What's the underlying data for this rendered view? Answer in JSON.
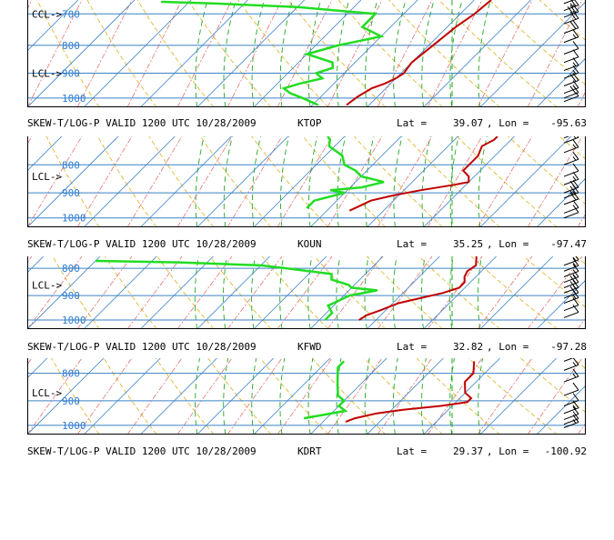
{
  "colors": {
    "isobar": "#3a82c6",
    "isotherm": "#3a82c6",
    "dry_adiabat": "#d9b020",
    "moist_adiabat": "#22a722",
    "mixing_ratio": "#e06060",
    "temperature": "#c00000",
    "dewpoint": "#22dd22",
    "wind_barb": "#000000",
    "frame": "#000000"
  },
  "panels": [
    {
      "station": "KTOP",
      "caption": {
        "title": "SKEW-T/LOG-P VALID 1200 UTC 10/28/2009",
        "station": "KTOP",
        "lat_label": "Lat =",
        "lat": "39.07",
        "lon_label": ", Lon =",
        "lon": "-95.63"
      },
      "markers": [
        {
          "label": "CCL->",
          "pressure": 700
        },
        {
          "label": "LCL->",
          "pressure": 900
        }
      ],
      "pressure_labels": [
        {
          "text": "700",
          "p": 700
        },
        {
          "text": "800",
          "p": 800
        },
        {
          "text": "900",
          "p": 900
        },
        {
          "text": "1000",
          "p": 1000
        }
      ],
      "p_top": 660,
      "p_bottom": 1040,
      "temperature": [
        [
          1030,
          16
        ],
        [
          995,
          16.5
        ],
        [
          960,
          17.5
        ],
        [
          940,
          19
        ],
        [
          920,
          20
        ],
        [
          900,
          20.5
        ],
        [
          860,
          20
        ],
        [
          820,
          20.5
        ],
        [
          780,
          21
        ],
        [
          740,
          21.5
        ],
        [
          700,
          22.5
        ],
        [
          660,
          23
        ]
      ],
      "dewpoint": [
        [
          1030,
          11
        ],
        [
          1000,
          7
        ],
        [
          980,
          4
        ],
        [
          960,
          2
        ],
        [
          940,
          4
        ],
        [
          920,
          7
        ],
        [
          900,
          5
        ],
        [
          880,
          7
        ],
        [
          860,
          6
        ],
        [
          830,
          0
        ],
        [
          800,
          4
        ],
        [
          770,
          10
        ],
        [
          740,
          5
        ],
        [
          700,
          5
        ],
        [
          680,
          -10
        ],
        [
          670,
          -25
        ],
        [
          665,
          -35
        ]
      ],
      "wind_barbs": [
        {
          "p": 670,
          "speed": 30
        },
        {
          "p": 690,
          "speed": 25
        },
        {
          "p": 710,
          "speed": 30
        },
        {
          "p": 730,
          "speed": 20
        },
        {
          "p": 760,
          "speed": 20
        },
        {
          "p": 790,
          "speed": 15
        },
        {
          "p": 830,
          "speed": 10
        },
        {
          "p": 860,
          "speed": 10
        },
        {
          "p": 890,
          "speed": 15
        },
        {
          "p": 920,
          "speed": 15
        },
        {
          "p": 950,
          "speed": 20
        },
        {
          "p": 980,
          "speed": 15
        },
        {
          "p": 1000,
          "speed": 20
        },
        {
          "p": 1015,
          "speed": 5
        }
      ]
    },
    {
      "station": "KOUN",
      "caption": {
        "title": "SKEW-T/LOG-P VALID 1200 UTC 10/28/2009",
        "station": "KOUN",
        "lat_label": "Lat =",
        "lat": "35.25",
        "lon_label": ", Lon =",
        "lon": "-97.47"
      },
      "markers": [
        {
          "label": "LCL->",
          "pressure": 840
        }
      ],
      "pressure_labels": [
        {
          "text": "800",
          "p": 800
        },
        {
          "text": "900",
          "p": 900
        },
        {
          "text": "1000",
          "p": 1000
        }
      ],
      "p_top": 710,
      "p_bottom": 1040,
      "temperature": [
        [
          970,
          14
        ],
        [
          950,
          15
        ],
        [
          930,
          16
        ],
        [
          910,
          19
        ],
        [
          890,
          23
        ],
        [
          870,
          28
        ],
        [
          860,
          30
        ],
        [
          840,
          29
        ],
        [
          820,
          27
        ],
        [
          800,
          27
        ],
        [
          770,
          27
        ],
        [
          740,
          26
        ],
        [
          720,
          27
        ],
        [
          710,
          27
        ]
      ],
      "dewpoint": [
        [
          960,
          6
        ],
        [
          930,
          6
        ],
        [
          900,
          10
        ],
        [
          890,
          7
        ],
        [
          880,
          12
        ],
        [
          860,
          15
        ],
        [
          840,
          10
        ],
        [
          820,
          8
        ],
        [
          800,
          5
        ],
        [
          770,
          3
        ],
        [
          740,
          -1
        ],
        [
          720,
          -2
        ],
        [
          710,
          -3
        ]
      ],
      "wind_barbs": [
        {
          "p": 715,
          "speed": 20
        },
        {
          "p": 730,
          "speed": 20
        },
        {
          "p": 760,
          "speed": 15
        },
        {
          "p": 800,
          "speed": 15
        },
        {
          "p": 840,
          "speed": 10
        },
        {
          "p": 870,
          "speed": 15
        },
        {
          "p": 900,
          "speed": 20
        },
        {
          "p": 920,
          "speed": 25
        },
        {
          "p": 945,
          "speed": 20
        },
        {
          "p": 980,
          "speed": 15
        },
        {
          "p": 1000,
          "speed": 5
        }
      ]
    },
    {
      "station": "KFWD",
      "caption": {
        "title": "SKEW-T/LOG-P VALID 1200 UTC 10/28/2009",
        "station": "KFWD",
        "lat_label": "Lat =",
        "lat": "32.82",
        "lon_label": ", Lon =",
        "lon": "-97.28"
      },
      "markers": [
        {
          "label": "LCL->",
          "pressure": 860
        }
      ],
      "pressure_labels": [
        {
          "text": "800",
          "p": 800
        },
        {
          "text": "900",
          "p": 900
        },
        {
          "text": "1000",
          "p": 1000
        }
      ],
      "p_top": 760,
      "p_bottom": 1040,
      "temperature": [
        [
          1000,
          17
        ],
        [
          980,
          17.5
        ],
        [
          960,
          19
        ],
        [
          930,
          21
        ],
        [
          910,
          24
        ],
        [
          890,
          27
        ],
        [
          870,
          29
        ],
        [
          850,
          29
        ],
        [
          830,
          28
        ],
        [
          810,
          27.5
        ],
        [
          790,
          28
        ],
        [
          770,
          27
        ],
        [
          760,
          26.5
        ]
      ],
      "dewpoint": [
        [
          1000,
          11
        ],
        [
          970,
          11
        ],
        [
          940,
          9
        ],
        [
          920,
          10
        ],
        [
          900,
          11
        ],
        [
          880,
          15
        ],
        [
          870,
          10
        ],
        [
          860,
          9
        ],
        [
          840,
          5
        ],
        [
          820,
          4
        ],
        [
          800,
          -5
        ],
        [
          790,
          -10
        ],
        [
          780,
          -25
        ],
        [
          775,
          -40
        ]
      ],
      "wind_barbs": [
        {
          "p": 790,
          "speed": 15
        },
        {
          "p": 810,
          "speed": 15
        },
        {
          "p": 830,
          "speed": 10
        },
        {
          "p": 850,
          "speed": 15
        },
        {
          "p": 870,
          "speed": 20
        },
        {
          "p": 890,
          "speed": 20
        },
        {
          "p": 910,
          "speed": 20
        },
        {
          "p": 930,
          "speed": 15
        },
        {
          "p": 960,
          "speed": 10
        },
        {
          "p": 990,
          "speed": 10
        }
      ]
    },
    {
      "station": "KDRT",
      "caption": {
        "title": "SKEW-T/LOG-P VALID 1200 UTC 10/28/2009",
        "station": "KDRT",
        "lat_label": "Lat =",
        "lat": "29.37",
        "lon_label": ", Lon =",
        "lon": "-100.92"
      },
      "markers": [
        {
          "label": "LCL->",
          "pressure": 870
        }
      ],
      "pressure_labels": [
        {
          "text": "800",
          "p": 800
        },
        {
          "text": "900",
          "p": 900
        },
        {
          "text": "1000",
          "p": 1000
        }
      ],
      "p_top": 750,
      "p_bottom": 1040,
      "temperature": [
        [
          985,
          14
        ],
        [
          970,
          15
        ],
        [
          950,
          18
        ],
        [
          935,
          22
        ],
        [
          920,
          28
        ],
        [
          905,
          32
        ],
        [
          890,
          32
        ],
        [
          870,
          30
        ],
        [
          850,
          29
        ],
        [
          830,
          28
        ],
        [
          800,
          28
        ],
        [
          780,
          27
        ],
        [
          760,
          26
        ]
      ],
      "dewpoint": [
        [
          970,
          6
        ],
        [
          955,
          9
        ],
        [
          940,
          12
        ],
        [
          920,
          10
        ],
        [
          900,
          10
        ],
        [
          880,
          8
        ],
        [
          860,
          7
        ],
        [
          840,
          6
        ],
        [
          820,
          5
        ],
        [
          800,
          4
        ],
        [
          780,
          3
        ],
        [
          760,
          3
        ]
      ],
      "wind_barbs": [
        {
          "p": 760,
          "speed": 10
        },
        {
          "p": 790,
          "speed": 15
        },
        {
          "p": 830,
          "speed": 15
        },
        {
          "p": 880,
          "speed": 10
        },
        {
          "p": 920,
          "speed": 10
        },
        {
          "p": 950,
          "speed": 15
        },
        {
          "p": 975,
          "speed": 10
        },
        {
          "p": 995,
          "speed": 10
        },
        {
          "p": 1010,
          "speed": 15
        }
      ]
    }
  ]
}
